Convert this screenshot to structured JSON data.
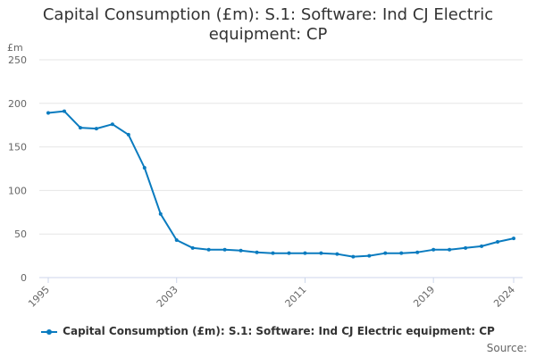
{
  "chart_data": {
    "type": "line",
    "title_lines": [
      "Capital Consumption (£m): S.1: Software: Ind CJ Electric",
      "equipment: CP"
    ],
    "ylabel": "£m",
    "xlabel": "",
    "ylim": [
      0,
      250
    ],
    "yticks": [
      0,
      50,
      100,
      150,
      200,
      250
    ],
    "xlim": [
      1995,
      2024
    ],
    "xticks": [
      1995,
      2003,
      2011,
      2019,
      2024
    ],
    "grid": true,
    "legend_position": "bottom",
    "series": [
      {
        "name": "Capital Consumption (£m): S.1: Software: Ind CJ Electric equipment: CP",
        "color": "#0a7bbf",
        "x": [
          1995,
          1996,
          1997,
          1998,
          1999,
          2000,
          2001,
          2002,
          2003,
          2004,
          2005,
          2006,
          2007,
          2008,
          2009,
          2010,
          2011,
          2012,
          2013,
          2014,
          2015,
          2016,
          2017,
          2018,
          2019,
          2020,
          2021,
          2022,
          2023,
          2024
        ],
        "values": [
          189,
          191,
          172,
          171,
          176,
          164,
          126,
          73,
          43,
          34,
          32,
          32,
          31,
          29,
          28,
          28,
          28,
          28,
          27,
          24,
          25,
          28,
          28,
          29,
          32,
          32,
          34,
          36,
          41,
          45
        ]
      }
    ]
  },
  "source_label": "Source:"
}
